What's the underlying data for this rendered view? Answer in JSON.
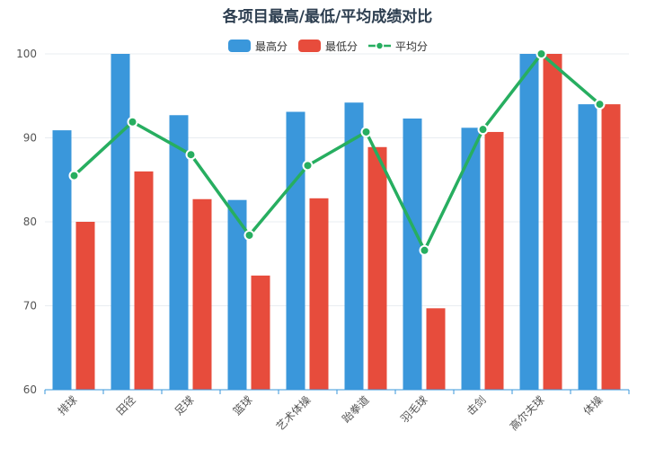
{
  "chart_data": {
    "type": "bar",
    "title": "各项目最高/最低/平均成绩对比",
    "categories": [
      "排球",
      "田径",
      "足球",
      "篮球",
      "艺术体操",
      "跆拳道",
      "羽毛球",
      "击剑",
      "高尔夫球",
      "体操"
    ],
    "ylim": [
      60,
      100
    ],
    "yticks": [
      60,
      70,
      80,
      90,
      100
    ],
    "series": [
      {
        "name": "最高分",
        "type": "bar",
        "color": "#3a97db",
        "values": [
          90.9,
          100,
          92.7,
          82.6,
          93.1,
          94.2,
          92.3,
          91.2,
          100,
          94
        ]
      },
      {
        "name": "最低分",
        "type": "bar",
        "color": "#e74c3c",
        "values": [
          80,
          86,
          82.7,
          73.6,
          82.8,
          88.9,
          69.7,
          90.7,
          100,
          94
        ]
      },
      {
        "name": "平均分",
        "type": "line",
        "color": "#27ae60",
        "values": [
          85.5,
          91.9,
          88,
          78.4,
          86.7,
          90.7,
          76.6,
          91,
          100,
          94
        ]
      }
    ],
    "legend_position": "top-center",
    "grid": true
  }
}
